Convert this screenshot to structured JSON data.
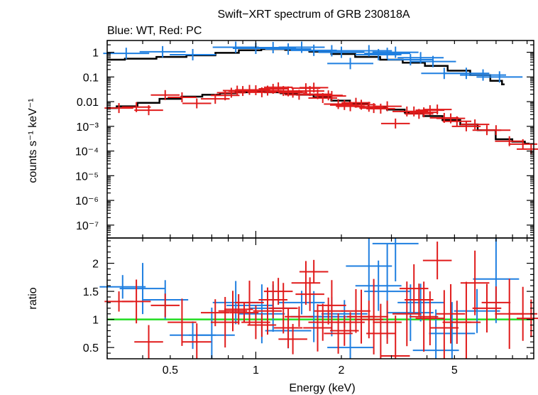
{
  "chart_data": [
    {
      "type": "scatter",
      "panel": "spectrum",
      "title": "Swift−XRT spectrum of GRB 230818A",
      "subtitle": "Blue: WT, Red: PC",
      "ylabel": "counts s⁻¹ keV⁻¹",
      "xscale": "log",
      "yscale": "log",
      "xlim": [
        0.3,
        9.5
      ],
      "ylim": [
        3e-08,
        3
      ],
      "x_tick_labels": [
        "0.5",
        "1",
        "2",
        "5"
      ],
      "y_tick_labels": [
        "1",
        "0.1",
        "0.01",
        "10⁻³",
        "10⁻⁴",
        "10⁻⁵",
        "10⁻⁶",
        "10⁻⁷"
      ],
      "series": [
        {
          "color": "#1f7fe0",
          "points": [
            {
              "x": 0.35,
              "y": 0.9
            },
            {
              "x": 0.47,
              "y": 1.05
            },
            {
              "x": 0.6,
              "y": 0.8
            },
            {
              "x": 0.85,
              "y": 1.6
            },
            {
              "x": 1.0,
              "y": 1.45
            },
            {
              "x": 1.15,
              "y": 1.55
            },
            {
              "x": 1.3,
              "y": 1.35
            },
            {
              "x": 1.45,
              "y": 1.6
            },
            {
              "x": 1.6,
              "y": 1.2
            },
            {
              "x": 1.85,
              "y": 1.15
            },
            {
              "x": 2.0,
              "y": 1.0
            },
            {
              "x": 2.15,
              "y": 0.35
            },
            {
              "x": 2.5,
              "y": 1.15
            },
            {
              "x": 2.7,
              "y": 0.8
            },
            {
              "x": 2.9,
              "y": 0.9
            },
            {
              "x": 3.1,
              "y": 1.0
            },
            {
              "x": 3.5,
              "y": 0.5
            },
            {
              "x": 3.8,
              "y": 0.6
            },
            {
              "x": 4.2,
              "y": 0.42
            },
            {
              "x": 4.6,
              "y": 0.14
            },
            {
              "x": 5.5,
              "y": 0.14
            },
            {
              "x": 6.3,
              "y": 0.12
            },
            {
              "x": 7.2,
              "y": 0.1
            }
          ]
        },
        {
          "color": "#e01b1b",
          "points": [
            {
              "x": 0.33,
              "y": 0.0055
            },
            {
              "x": 0.38,
              "y": 0.006
            },
            {
              "x": 0.42,
              "y": 0.0045
            },
            {
              "x": 0.48,
              "y": 0.0185
            },
            {
              "x": 0.55,
              "y": 0.015
            },
            {
              "x": 0.62,
              "y": 0.0085
            },
            {
              "x": 0.72,
              "y": 0.013
            },
            {
              "x": 0.78,
              "y": 0.018
            },
            {
              "x": 0.82,
              "y": 0.023
            },
            {
              "x": 0.86,
              "y": 0.028
            },
            {
              "x": 0.9,
              "y": 0.027
            },
            {
              "x": 0.95,
              "y": 0.03
            },
            {
              "x": 1.0,
              "y": 0.029
            },
            {
              "x": 1.05,
              "y": 0.024
            },
            {
              "x": 1.1,
              "y": 0.028
            },
            {
              "x": 1.15,
              "y": 0.033
            },
            {
              "x": 1.2,
              "y": 0.038
            },
            {
              "x": 1.25,
              "y": 0.027
            },
            {
              "x": 1.3,
              "y": 0.026
            },
            {
              "x": 1.35,
              "y": 0.023
            },
            {
              "x": 1.42,
              "y": 0.019
            },
            {
              "x": 1.5,
              "y": 0.035
            },
            {
              "x": 1.55,
              "y": 0.027
            },
            {
              "x": 1.6,
              "y": 0.037
            },
            {
              "x": 1.65,
              "y": 0.02
            },
            {
              "x": 1.72,
              "y": 0.014
            },
            {
              "x": 1.8,
              "y": 0.018
            },
            {
              "x": 1.85,
              "y": 0.017
            },
            {
              "x": 1.95,
              "y": 0.008
            },
            {
              "x": 2.05,
              "y": 0.0073
            },
            {
              "x": 2.15,
              "y": 0.0065
            },
            {
              "x": 2.25,
              "y": 0.009
            },
            {
              "x": 2.35,
              "y": 0.0075
            },
            {
              "x": 2.5,
              "y": 0.0062
            },
            {
              "x": 2.6,
              "y": 0.0055
            },
            {
              "x": 2.75,
              "y": 0.0052
            },
            {
              "x": 2.9,
              "y": 0.0065
            },
            {
              "x": 3.1,
              "y": 0.0013
            },
            {
              "x": 3.4,
              "y": 0.004
            },
            {
              "x": 3.6,
              "y": 0.004
            },
            {
              "x": 3.75,
              "y": 0.0032
            },
            {
              "x": 3.9,
              "y": 0.0037
            },
            {
              "x": 4.1,
              "y": 0.0045
            },
            {
              "x": 4.35,
              "y": 0.0048
            },
            {
              "x": 4.6,
              "y": 0.0022
            },
            {
              "x": 4.85,
              "y": 0.0021
            },
            {
              "x": 5.1,
              "y": 0.0016
            },
            {
              "x": 5.5,
              "y": 0.001
            },
            {
              "x": 5.9,
              "y": 0.0012
            },
            {
              "x": 6.5,
              "y": 0.0007
            },
            {
              "x": 7.0,
              "y": 0.0007
            },
            {
              "x": 7.8,
              "y": 0.00025
            },
            {
              "x": 8.7,
              "y": 0.00019
            },
            {
              "x": 9.3,
              "y": 0.00012
            }
          ]
        }
      ],
      "models": [
        {
          "color": "#000000",
          "points": [
            {
              "x": 0.3,
              "y": 0.5
            },
            {
              "x": 0.4,
              "y": 0.55
            },
            {
              "x": 0.5,
              "y": 0.65
            },
            {
              "x": 0.65,
              "y": 0.75
            },
            {
              "x": 0.8,
              "y": 0.95
            },
            {
              "x": 0.95,
              "y": 1.2
            },
            {
              "x": 1.15,
              "y": 1.35
            },
            {
              "x": 1.4,
              "y": 1.25
            },
            {
              "x": 1.7,
              "y": 1.05
            },
            {
              "x": 2.0,
              "y": 0.85
            },
            {
              "x": 2.5,
              "y": 0.65
            },
            {
              "x": 3.0,
              "y": 0.5
            },
            {
              "x": 3.6,
              "y": 0.38
            },
            {
              "x": 4.3,
              "y": 0.28
            },
            {
              "x": 5.2,
              "y": 0.18
            },
            {
              "x": 6.2,
              "y": 0.12
            },
            {
              "x": 7.2,
              "y": 0.07
            },
            {
              "x": 7.5,
              "y": 0.05
            }
          ]
        },
        {
          "color": "#000000",
          "points": [
            {
              "x": 0.3,
              "y": 0.0055
            },
            {
              "x": 0.35,
              "y": 0.0065
            },
            {
              "x": 0.42,
              "y": 0.009
            },
            {
              "x": 0.5,
              "y": 0.013
            },
            {
              "x": 0.6,
              "y": 0.016
            },
            {
              "x": 0.7,
              "y": 0.019
            },
            {
              "x": 0.8,
              "y": 0.022
            },
            {
              "x": 0.9,
              "y": 0.024
            },
            {
              "x": 1.0,
              "y": 0.025
            },
            {
              "x": 1.15,
              "y": 0.024
            },
            {
              "x": 1.3,
              "y": 0.022
            },
            {
              "x": 1.5,
              "y": 0.019
            },
            {
              "x": 1.7,
              "y": 0.015
            },
            {
              "x": 2.0,
              "y": 0.011
            },
            {
              "x": 2.3,
              "y": 0.008
            },
            {
              "x": 2.7,
              "y": 0.006
            },
            {
              "x": 3.1,
              "y": 0.0048
            },
            {
              "x": 3.6,
              "y": 0.0036
            },
            {
              "x": 4.2,
              "y": 0.0026
            },
            {
              "x": 4.9,
              "y": 0.0018
            },
            {
              "x": 5.6,
              "y": 0.0012
            },
            {
              "x": 6.5,
              "y": 0.0007
            },
            {
              "x": 7.5,
              "y": 0.0003
            },
            {
              "x": 8.5,
              "y": 0.00024
            },
            {
              "x": 9.2,
              "y": 0.0002
            }
          ]
        }
      ]
    },
    {
      "type": "scatter",
      "panel": "ratio",
      "xlabel": "Energy (keV)",
      "ylabel": "ratio",
      "xscale": "log",
      "xlim": [
        0.3,
        9.5
      ],
      "ylim": [
        0.3,
        2.45
      ],
      "x_tick_labels": [
        "0.5",
        "1",
        "2",
        "5"
      ],
      "y_tick_labels": [
        "0.5",
        "1",
        "1.5",
        "2"
      ],
      "reference_line": {
        "y": 1,
        "color": "#22dd22"
      },
      "series": [
        {
          "color": "#1f7fe0",
          "points": [
            {
              "x": 0.34,
              "y": 1.58
            },
            {
              "x": 0.4,
              "y": 1.55
            },
            {
              "x": 0.48,
              "y": 1.35
            },
            {
              "x": 0.6,
              "y": 0.72
            },
            {
              "x": 0.7,
              "y": 0.72
            },
            {
              "x": 0.85,
              "y": 1.3
            },
            {
              "x": 0.95,
              "y": 1.25
            },
            {
              "x": 1.05,
              "y": 1.1
            },
            {
              "x": 1.15,
              "y": 1.2
            },
            {
              "x": 1.3,
              "y": 0.8
            },
            {
              "x": 1.45,
              "y": 1.3
            },
            {
              "x": 1.6,
              "y": 1.05
            },
            {
              "x": 1.85,
              "y": 1.05
            },
            {
              "x": 2.05,
              "y": 1.1
            },
            {
              "x": 2.15,
              "y": 0.5
            },
            {
              "x": 2.5,
              "y": 1.95
            },
            {
              "x": 2.7,
              "y": 1.6
            },
            {
              "x": 2.9,
              "y": 1.5
            },
            {
              "x": 3.1,
              "y": 2.35
            },
            {
              "x": 3.5,
              "y": 1.12
            },
            {
              "x": 3.8,
              "y": 1.3
            },
            {
              "x": 4.3,
              "y": 0.45
            },
            {
              "x": 4.9,
              "y": 0.75
            },
            {
              "x": 6.0,
              "y": 1.15
            },
            {
              "x": 7.0,
              "y": 1.72
            }
          ]
        },
        {
          "color": "#e01b1b",
          "points": [
            {
              "x": 0.33,
              "y": 1.32
            },
            {
              "x": 0.38,
              "y": 1.32
            },
            {
              "x": 0.42,
              "y": 0.6
            },
            {
              "x": 0.48,
              "y": 1.25
            },
            {
              "x": 0.55,
              "y": 0.95
            },
            {
              "x": 0.62,
              "y": 0.6
            },
            {
              "x": 0.72,
              "y": 1.12
            },
            {
              "x": 0.78,
              "y": 0.95
            },
            {
              "x": 0.83,
              "y": 1.15
            },
            {
              "x": 0.87,
              "y": 1.18
            },
            {
              "x": 0.91,
              "y": 1.12
            },
            {
              "x": 0.95,
              "y": 1.3
            },
            {
              "x": 1.0,
              "y": 0.95
            },
            {
              "x": 1.05,
              "y": 0.9
            },
            {
              "x": 1.1,
              "y": 1.15
            },
            {
              "x": 1.15,
              "y": 1.35
            },
            {
              "x": 1.2,
              "y": 1.5
            },
            {
              "x": 1.25,
              "y": 1.2
            },
            {
              "x": 1.3,
              "y": 0.85
            },
            {
              "x": 1.35,
              "y": 0.65
            },
            {
              "x": 1.42,
              "y": 1.05
            },
            {
              "x": 1.5,
              "y": 1.65
            },
            {
              "x": 1.55,
              "y": 1.45
            },
            {
              "x": 1.6,
              "y": 1.85
            },
            {
              "x": 1.65,
              "y": 0.85
            },
            {
              "x": 1.72,
              "y": 0.95
            },
            {
              "x": 1.8,
              "y": 1.15
            },
            {
              "x": 1.85,
              "y": 1.25
            },
            {
              "x": 1.95,
              "y": 0.75
            },
            {
              "x": 2.05,
              "y": 0.8
            },
            {
              "x": 2.15,
              "y": 0.95
            },
            {
              "x": 2.25,
              "y": 1.15
            },
            {
              "x": 2.35,
              "y": 1.05
            },
            {
              "x": 2.5,
              "y": 1.0
            },
            {
              "x": 2.6,
              "y": 1.05
            },
            {
              "x": 2.75,
              "y": 0.75
            },
            {
              "x": 2.9,
              "y": 0.95
            },
            {
              "x": 3.1,
              "y": 0.35
            },
            {
              "x": 3.4,
              "y": 1.1
            },
            {
              "x": 3.6,
              "y": 1.55
            },
            {
              "x": 3.75,
              "y": 1.35
            },
            {
              "x": 3.9,
              "y": 1.05
            },
            {
              "x": 4.1,
              "y": 1.02
            },
            {
              "x": 4.35,
              "y": 2.05
            },
            {
              "x": 4.6,
              "y": 0.85
            },
            {
              "x": 4.85,
              "y": 1.1
            },
            {
              "x": 5.1,
              "y": 0.95
            },
            {
              "x": 5.5,
              "y": 0.95
            },
            {
              "x": 5.9,
              "y": 1.65
            },
            {
              "x": 6.5,
              "y": 1.2
            },
            {
              "x": 7.0,
              "y": 1.3
            },
            {
              "x": 7.8,
              "y": 1.1
            },
            {
              "x": 8.7,
              "y": 1.1
            },
            {
              "x": 9.3,
              "y": 1.02
            }
          ]
        }
      ]
    }
  ]
}
